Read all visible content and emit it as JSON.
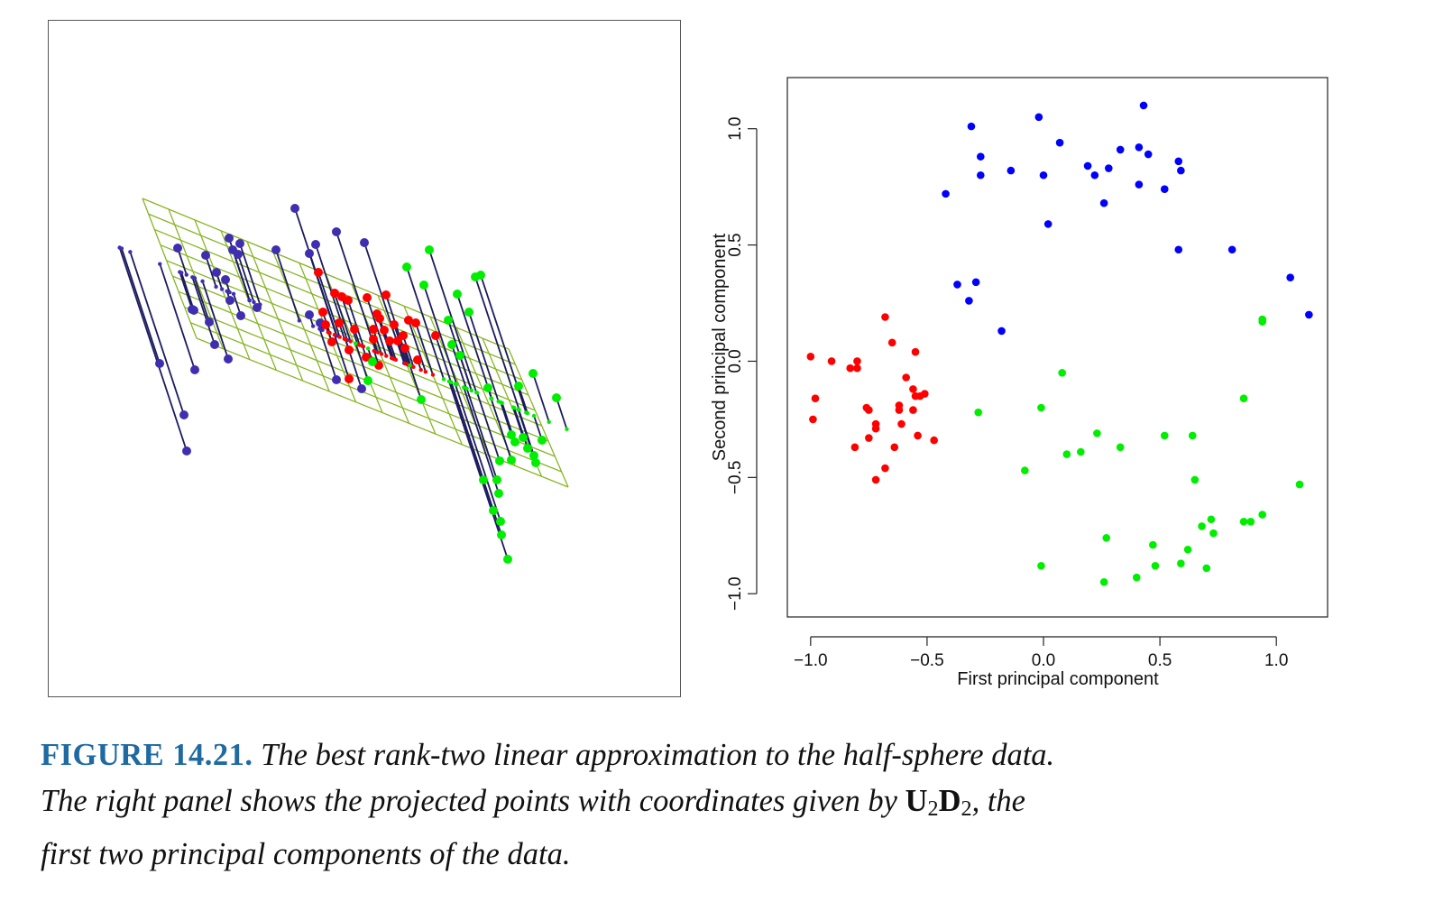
{
  "chart_data": [
    {
      "type": "scatter",
      "panel": "left",
      "description_mode": "3d-projection",
      "title": "",
      "colors": {
        "blue": "#3f2fb0",
        "red": "#ff0000",
        "green": "#00ee00",
        "stem": "#1b1b5e",
        "plane": "#88b525"
      },
      "points": [
        {
          "c": "blue",
          "x": 177,
          "y": 403
        },
        {
          "c": "blue",
          "x": 204,
          "y": 460
        },
        {
          "c": "blue",
          "x": 207,
          "y": 500
        },
        {
          "c": "blue",
          "x": 216,
          "y": 410
        },
        {
          "c": "blue",
          "x": 213,
          "y": 343
        },
        {
          "c": "blue",
          "x": 197,
          "y": 275
        },
        {
          "c": "blue",
          "x": 228,
          "y": 283
        },
        {
          "c": "blue",
          "x": 240,
          "y": 302
        },
        {
          "c": "blue",
          "x": 250,
          "y": 310
        },
        {
          "c": "blue",
          "x": 254,
          "y": 264
        },
        {
          "c": "blue",
          "x": 258,
          "y": 277
        },
        {
          "c": "blue",
          "x": 266,
          "y": 270
        },
        {
          "c": "blue",
          "x": 264,
          "y": 282
        },
        {
          "c": "blue",
          "x": 255,
          "y": 333
        },
        {
          "c": "blue",
          "x": 232,
          "y": 357
        },
        {
          "c": "blue",
          "x": 238,
          "y": 382
        },
        {
          "c": "blue",
          "x": 253,
          "y": 398
        },
        {
          "c": "blue",
          "x": 267,
          "y": 350
        },
        {
          "c": "blue",
          "x": 285,
          "y": 341
        },
        {
          "c": "blue",
          "x": 306,
          "y": 277
        },
        {
          "c": "blue",
          "x": 327,
          "y": 231
        },
        {
          "c": "blue",
          "x": 343,
          "y": 281
        },
        {
          "c": "blue",
          "x": 350,
          "y": 271
        },
        {
          "c": "blue",
          "x": 373,
          "y": 257
        },
        {
          "c": "blue",
          "x": 404,
          "y": 269
        },
        {
          "c": "blue",
          "x": 343,
          "y": 349
        },
        {
          "c": "blue",
          "x": 355,
          "y": 358
        },
        {
          "c": "blue",
          "x": 373,
          "y": 421
        },
        {
          "c": "blue",
          "x": 401,
          "y": 431
        },
        {
          "c": "blue",
          "x": 215,
          "y": 344
        },
        {
          "c": "red",
          "x": 353,
          "y": 302
        },
        {
          "c": "red",
          "x": 358,
          "y": 346
        },
        {
          "c": "red",
          "x": 361,
          "y": 360
        },
        {
          "c": "red",
          "x": 368,
          "y": 379
        },
        {
          "c": "red",
          "x": 371,
          "y": 325
        },
        {
          "c": "red",
          "x": 379,
          "y": 329
        },
        {
          "c": "red",
          "x": 386,
          "y": 333
        },
        {
          "c": "red",
          "x": 376,
          "y": 358
        },
        {
          "c": "red",
          "x": 387,
          "y": 388
        },
        {
          "c": "red",
          "x": 393,
          "y": 365
        },
        {
          "c": "red",
          "x": 387,
          "y": 420
        },
        {
          "c": "red",
          "x": 407,
          "y": 330
        },
        {
          "c": "red",
          "x": 418,
          "y": 348
        },
        {
          "c": "red",
          "x": 421,
          "y": 353
        },
        {
          "c": "red",
          "x": 414,
          "y": 365
        },
        {
          "c": "red",
          "x": 414,
          "y": 376
        },
        {
          "c": "red",
          "x": 406,
          "y": 396
        },
        {
          "c": "red",
          "x": 420,
          "y": 405
        },
        {
          "c": "red",
          "x": 428,
          "y": 327
        },
        {
          "c": "red",
          "x": 432,
          "y": 378
        },
        {
          "c": "red",
          "x": 441,
          "y": 378
        },
        {
          "c": "red",
          "x": 437,
          "y": 360
        },
        {
          "c": "red",
          "x": 447,
          "y": 372
        },
        {
          "c": "red",
          "x": 453,
          "y": 355
        },
        {
          "c": "red",
          "x": 461,
          "y": 358
        },
        {
          "c": "red",
          "x": 463,
          "y": 399
        },
        {
          "c": "red",
          "x": 483,
          "y": 372
        },
        {
          "c": "red",
          "x": 449,
          "y": 386
        },
        {
          "c": "red",
          "x": 426,
          "y": 366
        },
        {
          "c": "green",
          "x": 476,
          "y": 277
        },
        {
          "c": "green",
          "x": 451,
          "y": 296
        },
        {
          "c": "green",
          "x": 470,
          "y": 316
        },
        {
          "c": "green",
          "x": 497,
          "y": 355
        },
        {
          "c": "green",
          "x": 507,
          "y": 326
        },
        {
          "c": "green",
          "x": 520,
          "y": 346
        },
        {
          "c": "green",
          "x": 527,
          "y": 307
        },
        {
          "c": "green",
          "x": 533,
          "y": 305
        },
        {
          "c": "green",
          "x": 501,
          "y": 382
        },
        {
          "c": "green",
          "x": 510,
          "y": 394
        },
        {
          "c": "green",
          "x": 467,
          "y": 443
        },
        {
          "c": "green",
          "x": 408,
          "y": 422
        },
        {
          "c": "green",
          "x": 413,
          "y": 401
        },
        {
          "c": "green",
          "x": 541,
          "y": 430
        },
        {
          "c": "green",
          "x": 575,
          "y": 428
        },
        {
          "c": "green",
          "x": 591,
          "y": 414
        },
        {
          "c": "green",
          "x": 617,
          "y": 441
        },
        {
          "c": "green",
          "x": 567,
          "y": 482
        },
        {
          "c": "green",
          "x": 571,
          "y": 490
        },
        {
          "c": "green",
          "x": 580,
          "y": 485
        },
        {
          "c": "green",
          "x": 592,
          "y": 505
        },
        {
          "c": "green",
          "x": 594,
          "y": 513
        },
        {
          "c": "green",
          "x": 601,
          "y": 488
        },
        {
          "c": "green",
          "x": 585,
          "y": 497
        },
        {
          "c": "green",
          "x": 554,
          "y": 511
        },
        {
          "c": "green",
          "x": 536,
          "y": 532
        },
        {
          "c": "green",
          "x": 551,
          "y": 532
        },
        {
          "c": "green",
          "x": 553,
          "y": 547
        },
        {
          "c": "green",
          "x": 547,
          "y": 566
        },
        {
          "c": "green",
          "x": 555,
          "y": 578
        },
        {
          "c": "green",
          "x": 556,
          "y": 593
        },
        {
          "c": "green",
          "x": 563,
          "y": 620
        },
        {
          "c": "green",
          "x": 567,
          "y": 510
        }
      ]
    },
    {
      "type": "scatter",
      "panel": "right",
      "title": "",
      "xlabel": "First principal component",
      "ylabel": "Second principal component",
      "xlim": [
        -1.1,
        1.22
      ],
      "ylim": [
        -1.1,
        1.22
      ],
      "xticks": [
        -1.0,
        -0.5,
        0.0,
        0.5,
        1.0
      ],
      "yticks": [
        -1.0,
        -0.5,
        0.0,
        0.5,
        1.0
      ],
      "xtick_labels": [
        "−1.0",
        "−0.5",
        "0.0",
        "0.5",
        "1.0"
      ],
      "ytick_labels": [
        "−1.0",
        "−0.5",
        "0.0",
        "0.5",
        "1.0"
      ],
      "grid": false,
      "colors": {
        "blue": "#0000ff",
        "red": "#ff0000",
        "green": "#00ee00"
      },
      "series": [
        {
          "color": "blue",
          "x": [
            -0.31,
            -0.27,
            -0.27,
            -0.14,
            -0.02,
            0.0,
            0.07,
            0.02,
            -0.42,
            -0.37,
            -0.32,
            -0.29,
            -0.18,
            0.19,
            0.22,
            0.26,
            0.28,
            0.33,
            0.41,
            0.43,
            0.41,
            0.45,
            0.52,
            0.58,
            0.59,
            0.58,
            0.81,
            1.06,
            1.14
          ],
          "y": [
            1.01,
            0.88,
            0.8,
            0.82,
            1.05,
            0.8,
            0.94,
            0.59,
            0.72,
            0.33,
            0.26,
            0.34,
            0.13,
            0.84,
            0.8,
            0.68,
            0.83,
            0.91,
            0.92,
            1.1,
            0.76,
            0.89,
            0.74,
            0.86,
            0.82,
            0.48,
            0.48,
            0.36,
            0.2
          ]
        },
        {
          "color": "red",
          "x": [
            -1.0,
            -0.98,
            -0.99,
            -0.91,
            -0.83,
            -0.8,
            -0.8,
            -0.81,
            -0.76,
            -0.75,
            -0.75,
            -0.72,
            -0.72,
            -0.72,
            -0.68,
            -0.68,
            -0.65,
            -0.64,
            -0.62,
            -0.62,
            -0.61,
            -0.59,
            -0.56,
            -0.56,
            -0.55,
            -0.54,
            -0.55,
            -0.53,
            -0.51,
            -0.47
          ],
          "y": [
            0.02,
            -0.16,
            -0.25,
            0.0,
            -0.03,
            0.0,
            -0.03,
            -0.37,
            -0.2,
            -0.21,
            -0.33,
            -0.29,
            -0.27,
            -0.51,
            0.19,
            -0.46,
            0.08,
            -0.37,
            -0.19,
            -0.21,
            -0.27,
            -0.07,
            -0.12,
            -0.21,
            -0.15,
            -0.32,
            0.04,
            -0.15,
            -0.14,
            -0.34
          ]
        },
        {
          "color": "green",
          "x": [
            -0.28,
            -0.01,
            -0.08,
            0.08,
            0.1,
            0.16,
            0.23,
            0.33,
            0.27,
            0.26,
            0.4,
            0.47,
            0.48,
            0.52,
            0.59,
            0.62,
            0.64,
            0.65,
            0.68,
            0.7,
            0.72,
            0.73,
            0.86,
            0.86,
            0.89,
            0.94,
            0.94,
            0.94,
            1.1,
            -0.01
          ],
          "y": [
            -0.22,
            -0.2,
            -0.47,
            -0.05,
            -0.4,
            -0.39,
            -0.31,
            -0.37,
            -0.76,
            -0.95,
            -0.93,
            -0.79,
            -0.88,
            -0.32,
            -0.87,
            -0.81,
            -0.32,
            -0.51,
            -0.71,
            -0.89,
            -0.68,
            -0.74,
            -0.16,
            -0.69,
            -0.69,
            -0.66,
            0.18,
            0.17,
            -0.53,
            -0.88
          ]
        }
      ]
    }
  ],
  "caption": {
    "label": "FIGURE 14.21.",
    "line1": "The best rank-two linear approximation to the half-sphere data.",
    "line2_before": "The right panel shows the projected points with coordinates given by",
    "math_U": "U",
    "math_U_sub": "2",
    "math_D": "D",
    "math_D_sub": "2",
    "line2_after": ", the",
    "line3": "first two principal components of the data."
  }
}
